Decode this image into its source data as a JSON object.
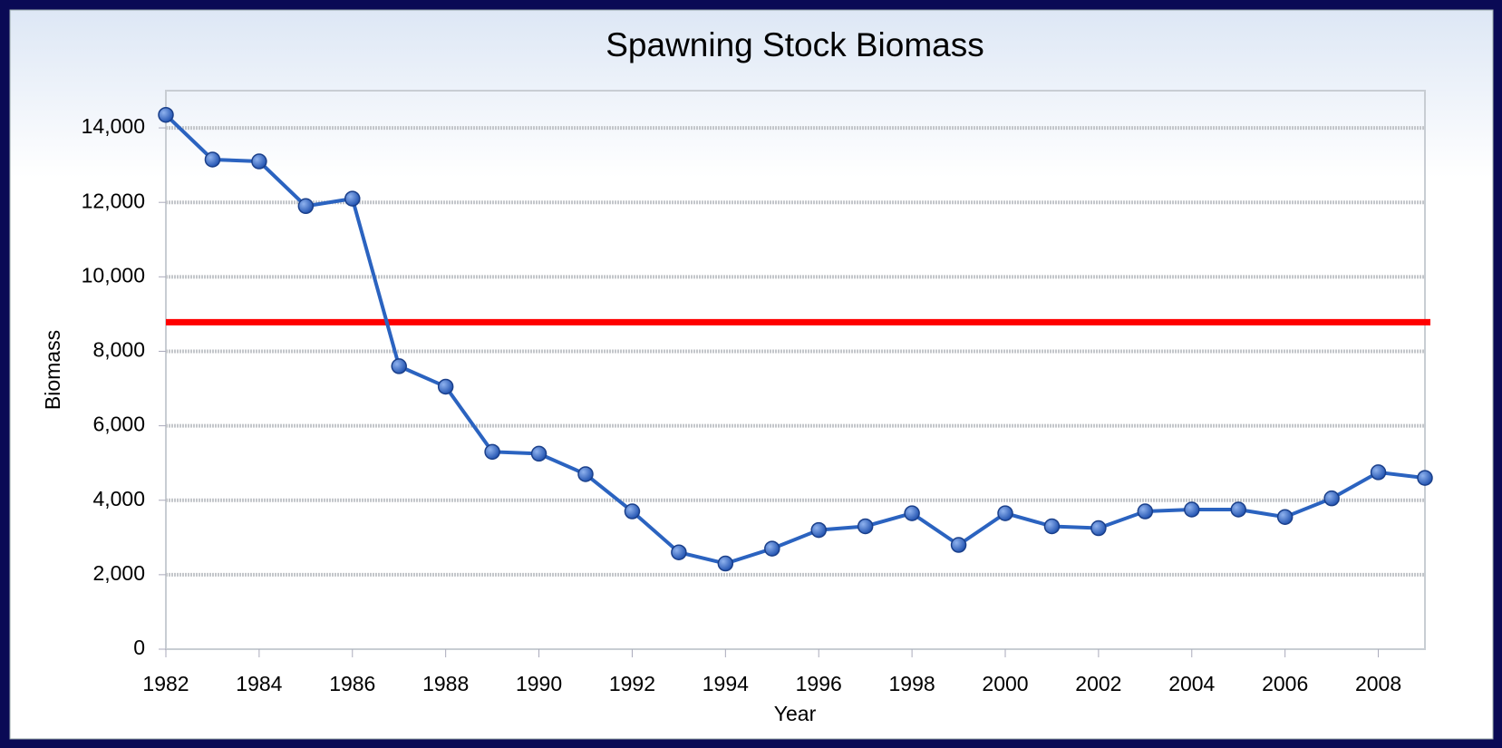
{
  "chart_data": {
    "type": "line",
    "title": "Spawning Stock Biomass",
    "x_label": "Year",
    "y_label": "Biomass",
    "x": [
      1982,
      1983,
      1984,
      1985,
      1986,
      1987,
      1988,
      1989,
      1990,
      1991,
      1992,
      1993,
      1994,
      1995,
      1996,
      1997,
      1998,
      1999,
      2000,
      2001,
      2002,
      2003,
      2004,
      2005,
      2006,
      2007,
      2008,
      2009
    ],
    "values": [
      14350,
      13150,
      13100,
      11900,
      12100,
      7600,
      7050,
      5300,
      5250,
      4700,
      3700,
      2600,
      2300,
      2700,
      3200,
      3300,
      3650,
      2800,
      3650,
      3300,
      3250,
      3700,
      3750,
      3750,
      3550,
      4050,
      4750,
      4600
    ],
    "color": "#2b63c0",
    "reference_line": {
      "value": 8780,
      "color": "#ff0000"
    },
    "xlim": [
      1982,
      2009
    ],
    "xticks": [
      1982,
      1984,
      1986,
      1988,
      1990,
      1992,
      1994,
      1996,
      1998,
      2000,
      2002,
      2004,
      2006,
      2008
    ],
    "ylim": [
      0,
      15000
    ],
    "yticks": [
      0,
      {
        "value": 2000,
        "label": "2,000"
      },
      {
        "value": 4000,
        "label": "4,000"
      },
      {
        "value": 6000,
        "label": "6,000"
      },
      {
        "value": 8000,
        "label": "8,000"
      },
      {
        "value": 10000,
        "label": "10,000"
      },
      {
        "value": 12000,
        "label": "12,000"
      },
      {
        "value": 14000,
        "label": "14,000"
      }
    ],
    "grid": true
  }
}
